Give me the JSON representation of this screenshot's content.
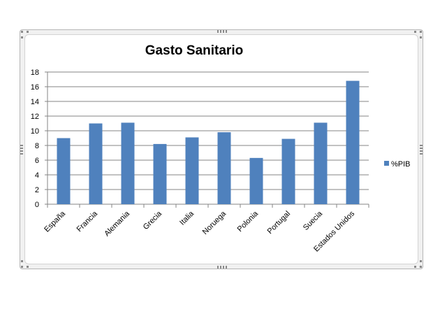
{
  "chart_data": {
    "type": "bar",
    "title": "Gasto Sanitario",
    "xlabel": "",
    "ylabel": "",
    "categories": [
      "España",
      "Francia",
      "Alemania",
      "Grecia",
      "Italia",
      "Noruega",
      "Polonia",
      "Portugal",
      "Suecia",
      "Estados Unidos"
    ],
    "series": [
      {
        "name": "%PIB",
        "values": [
          9.0,
          11.0,
          11.1,
          8.2,
          9.1,
          9.8,
          6.3,
          8.9,
          11.1,
          16.8
        ],
        "color": "#4f81bd"
      }
    ],
    "ylim": [
      0,
      18
    ],
    "yticks": [
      0,
      2,
      4,
      6,
      8,
      10,
      12,
      14,
      16,
      18
    ],
    "grid": true,
    "legend_position": "right"
  }
}
